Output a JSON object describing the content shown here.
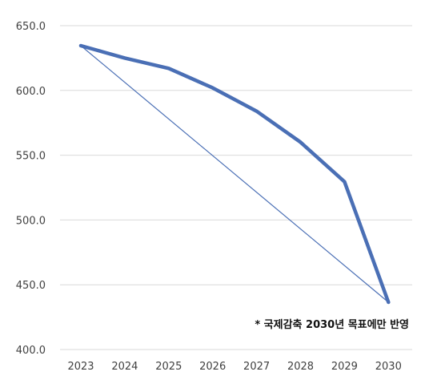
{
  "chart_data": {
    "type": "line",
    "title": "",
    "xlabel": "",
    "ylabel": "",
    "x": [
      "2023",
      "2024",
      "2025",
      "2026",
      "2027",
      "2028",
      "2029",
      "2030"
    ],
    "ylim": [
      400,
      650
    ],
    "yticks": [
      "400.0",
      "450.0",
      "500.0",
      "550.0",
      "600.0",
      "650.0"
    ],
    "ytick_values": [
      400,
      450,
      500,
      550,
      600,
      650
    ],
    "grid": "horizontal",
    "legend": "none",
    "series": [
      {
        "values": [
          634.5,
          625.0,
          617.0,
          602.0,
          584.0,
          560.0,
          529.5,
          436.5
        ],
        "color": "#4a6fb5",
        "style": "thick"
      },
      {
        "values": [
          634.5,
          null,
          null,
          null,
          null,
          null,
          null,
          436.5
        ],
        "color": "#4a6fb5",
        "style": "thin-straight"
      }
    ],
    "annotation": "* 국제감축 2030년 목표에만 반영"
  }
}
